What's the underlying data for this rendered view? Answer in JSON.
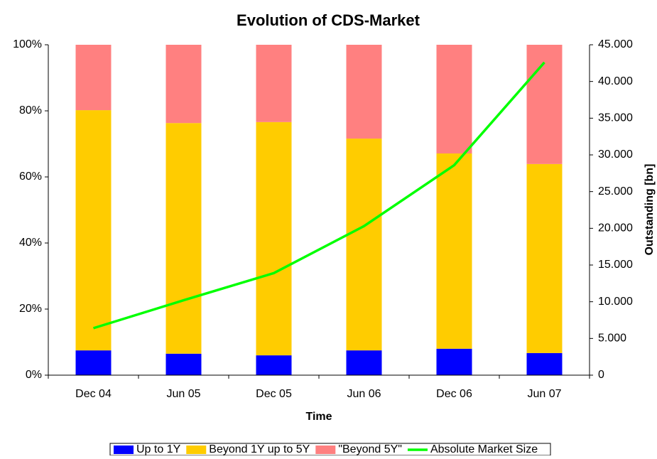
{
  "chart_data": {
    "type": "bar",
    "stacked": true,
    "title": "Evolution of CDS-Market",
    "x_label": "Time",
    "y2_label": "Outstanding [bn]",
    "categories": [
      "Dec 04",
      "Jun 05",
      "Dec 05",
      "Jun 06",
      "Dec 06",
      "Jun 07"
    ],
    "series": [
      {
        "name": "Up to 1Y",
        "color": "#0000ff",
        "type": "bar",
        "values": [
          7.5,
          6.5,
          6.0,
          7.5,
          8.0,
          6.7
        ]
      },
      {
        "name": "Beyond 1Y up to 5Y",
        "color": "#ffcc00",
        "type": "bar",
        "values": [
          72.7,
          69.8,
          70.6,
          64.1,
          59.1,
          57.2
        ]
      },
      {
        "name": "\"Beyond 5Y\"",
        "color": "#ff8080",
        "type": "bar",
        "values": [
          19.8,
          23.7,
          23.4,
          28.4,
          32.9,
          36.1
        ]
      },
      {
        "name": "Absolute Market Size",
        "color": "#00ff00",
        "type": "line",
        "axis": "y2",
        "values": [
          6400,
          10200,
          13900,
          20300,
          28600,
          42600
        ]
      }
    ],
    "ylim": [
      0,
      100
    ],
    "yticks": [
      {
        "value": 0,
        "label": "0%"
      },
      {
        "value": 20,
        "label": "20%"
      },
      {
        "value": 40,
        "label": "40%"
      },
      {
        "value": 60,
        "label": "60%"
      },
      {
        "value": 80,
        "label": "80%"
      },
      {
        "value": 100,
        "label": "100%"
      }
    ],
    "y2lim": [
      0,
      45000
    ],
    "y2ticks": [
      0,
      {
        "value": 5000,
        "label": "5.000"
      },
      {
        "value": 10000,
        "label": "10.000"
      },
      {
        "value": 15000,
        "label": "15.000"
      },
      {
        "value": 20000,
        "label": "20.000"
      },
      {
        "value": 25000,
        "label": "25.000"
      },
      {
        "value": 30000,
        "label": "30.000"
      },
      {
        "value": 35000,
        "label": "35.000"
      },
      {
        "value": 40000,
        "label": "40.000"
      },
      {
        "value": 45000,
        "label": "45.000"
      }
    ],
    "legend": "bottom"
  }
}
